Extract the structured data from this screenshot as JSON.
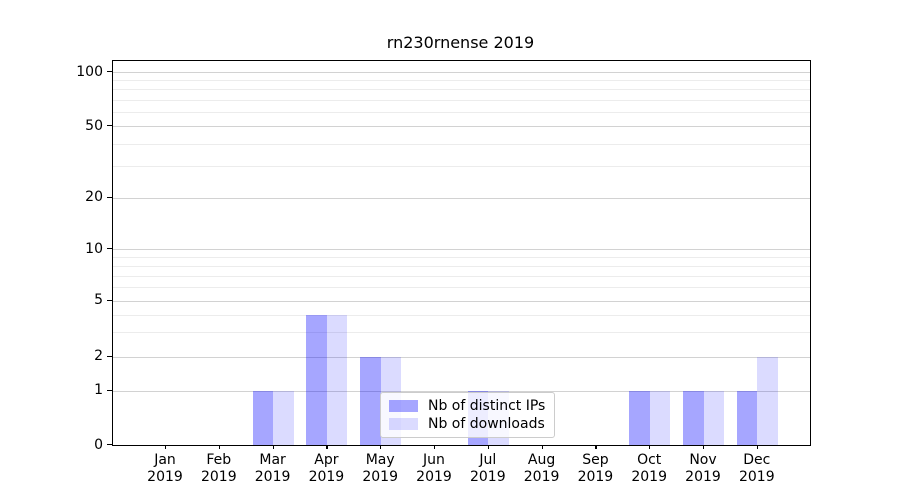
{
  "chart_data": {
    "type": "bar",
    "title": "rn230rnense 2019",
    "months": [
      "Jan",
      "Feb",
      "Mar",
      "Apr",
      "May",
      "Jun",
      "Jul",
      "Aug",
      "Sep",
      "Oct",
      "Nov",
      "Dec"
    ],
    "year": "2019",
    "series": [
      {
        "id": "distinct-ips",
        "name": "Nb of distinct IPs",
        "color": "#a5a5f8",
        "fill": "rgba(0,0,255,0.35)",
        "values": [
          0,
          0,
          1,
          4,
          2,
          0,
          1,
          0,
          0,
          1,
          1,
          1
        ]
      },
      {
        "id": "downloads",
        "name": "Nb of downloads",
        "color": "#dcdcfa",
        "fill": "rgba(0,0,255,0.14)",
        "values": [
          0,
          0,
          1,
          4,
          2,
          0,
          1,
          0,
          0,
          1,
          1,
          2
        ]
      }
    ],
    "yticks": [
      0,
      1,
      2,
      5,
      10,
      20,
      50,
      100
    ],
    "yticks_minor": [
      3,
      4,
      6,
      7,
      8,
      9,
      30,
      40,
      60,
      70,
      80,
      90
    ],
    "yscale": "symlog",
    "ylim": [
      0,
      115
    ],
    "grid": true,
    "legend_position": "lower center",
    "axis_color": "#000000",
    "grid_major_color": "#d2d2d2",
    "grid_minor_color": "#ececec"
  }
}
